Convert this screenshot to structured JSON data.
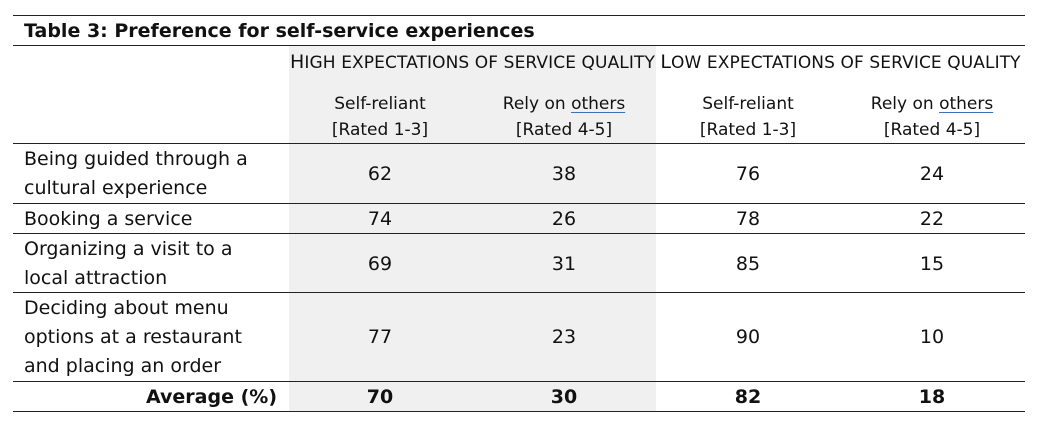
{
  "table": {
    "title": "Table 3: Preference for self-service experiences",
    "groups": [
      {
        "cap": "H",
        "rest": "IGH EXPECTATIONS OF SERVICE QUALITY"
      },
      {
        "cap": "L",
        "rest": "OW EXPECTATIONS OF SERVICE QUALITY"
      }
    ],
    "subheaders": [
      {
        "line1": "Self-reliant",
        "line1_pre": "",
        "line1_u": "",
        "line2": "[Rated 1-3]"
      },
      {
        "line1": "",
        "line1_pre": "Rely on ",
        "line1_u": "others",
        "line2": "[Rated 4-5]"
      },
      {
        "line1": "Self-reliant",
        "line1_pre": "",
        "line1_u": "",
        "line2": "[Rated 1-3]"
      },
      {
        "line1": "",
        "line1_pre": "Rely on ",
        "line1_u": "others",
        "line2": "[Rated 4-5]"
      }
    ],
    "rows": [
      {
        "label": "Being guided through a cultural experience",
        "values": [
          "62",
          "38",
          "76",
          "24"
        ]
      },
      {
        "label": "Booking a service",
        "values": [
          "74",
          "26",
          "78",
          "22"
        ]
      },
      {
        "label": "Organizing a visit to a local attraction",
        "values": [
          "69",
          "31",
          "85",
          "15"
        ]
      },
      {
        "label": "Deciding about menu options at a restaurant and placing an order",
        "values": [
          "77",
          "23",
          "90",
          "10"
        ]
      }
    ],
    "average": {
      "label": "Average (%)",
      "values": [
        "70",
        "30",
        "82",
        "18"
      ]
    }
  }
}
